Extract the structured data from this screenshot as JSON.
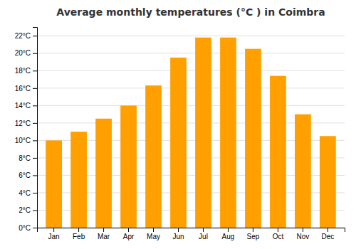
{
  "chart_data": {
    "type": "bar",
    "title": "Average monthly temperatures (°C ) in Coimbra",
    "categories": [
      "Jan",
      "Feb",
      "Mar",
      "Apr",
      "May",
      "Jun",
      "Jul",
      "Aug",
      "Sep",
      "Oct",
      "Nov",
      "Dec"
    ],
    "values": [
      10.0,
      11.0,
      12.5,
      14.0,
      16.3,
      19.5,
      21.8,
      21.8,
      20.5,
      17.4,
      13.0,
      10.5
    ],
    "color": "#FFA000",
    "ylim": [
      0,
      23
    ],
    "yticks": [
      {
        "value": 0,
        "label": "0°C"
      },
      {
        "value": 2,
        "label": "2°C"
      },
      {
        "value": 4,
        "label": "4°C"
      },
      {
        "value": 6,
        "label": "6°C"
      },
      {
        "value": 8,
        "label": "8°C"
      },
      {
        "value": 10,
        "label": "10°C"
      },
      {
        "value": 12,
        "label": "12°C"
      },
      {
        "value": 14,
        "label": "14°C"
      },
      {
        "value": 16,
        "label": "16°C"
      },
      {
        "value": 18,
        "label": "18°C"
      },
      {
        "value": 20,
        "label": "20°C"
      },
      {
        "value": 22,
        "label": "22°C"
      }
    ],
    "grid": true
  }
}
